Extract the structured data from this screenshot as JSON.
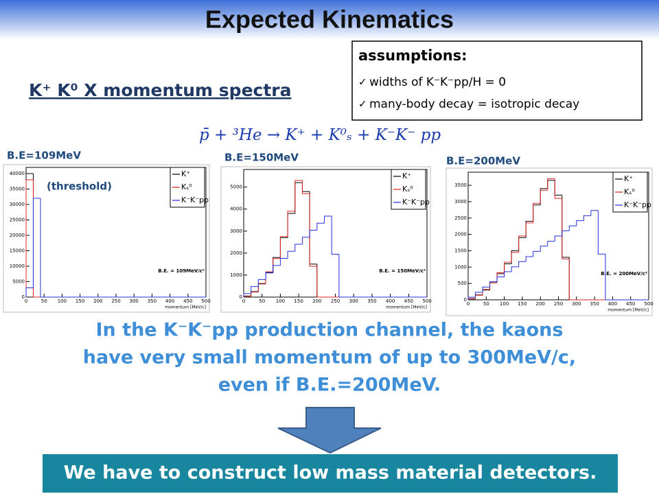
{
  "title": "Expected Kinematics",
  "subtitle": "K⁺ K⁰ X momentum spectra",
  "assumptions": {
    "heading": "assumptions:",
    "items": [
      "widths of K⁻K⁻pp/H = 0",
      "many-body decay = isotropic decay"
    ]
  },
  "reaction": "p̄ + ³He → K⁺ + K⁰ₛ + K⁻K⁻ pp",
  "conclusion": [
    "In the K⁻K⁻pp production channel, the kaons",
    "have very small momentum of up to 300MeV/c,",
    "even if B.E.=200MeV."
  ],
  "banner": "We have to construct low mass material detectors.",
  "chart_data": [
    {
      "type": "histogram",
      "title": "B.E=109MeV",
      "annotation": "(threshold)",
      "note": "B.E. = 109MeV/c²",
      "xlabel": "momentum [MeV/c]",
      "bins": [
        0,
        20,
        40,
        60,
        80,
        100,
        120,
        140,
        160,
        180,
        200,
        220,
        240,
        260,
        280,
        300,
        320,
        340,
        360,
        380,
        400,
        420,
        440,
        460,
        480,
        500
      ],
      "xlim": [
        0,
        500
      ],
      "xticks": [
        0,
        50,
        100,
        150,
        200,
        250,
        300,
        350,
        400,
        450,
        500
      ],
      "ylim": [
        0,
        42000
      ],
      "yticks": [
        0,
        5000,
        10000,
        15000,
        20000,
        25000,
        30000,
        35000,
        40000
      ],
      "series": [
        {
          "name": "K⁺",
          "color": "#000000",
          "values": [
            40000,
            0,
            0,
            0,
            0,
            0,
            0,
            0,
            0,
            0,
            0,
            0,
            0,
            0,
            0,
            0,
            0,
            0,
            0,
            0,
            0,
            0,
            0,
            0,
            0
          ]
        },
        {
          "name": "Kₛ⁰",
          "color": "#e02020",
          "values": [
            38000,
            0,
            0,
            0,
            0,
            0,
            0,
            0,
            0,
            0,
            0,
            0,
            0,
            0,
            0,
            0,
            0,
            0,
            0,
            0,
            0,
            0,
            0,
            0,
            0
          ]
        },
        {
          "name": "K⁻K⁻pp",
          "color": "#2030e0",
          "values": [
            3000,
            32000,
            0,
            0,
            0,
            0,
            0,
            0,
            0,
            0,
            0,
            0,
            0,
            0,
            0,
            0,
            0,
            0,
            0,
            0,
            0,
            0,
            0,
            0,
            0
          ]
        }
      ]
    },
    {
      "type": "histogram",
      "title": "B.E=150MeV",
      "note": "B.E. = 150MeV/c²",
      "xlabel": "momentum [MeV/c]",
      "bins": [
        0,
        20,
        40,
        60,
        80,
        100,
        120,
        140,
        160,
        180,
        200,
        220,
        240,
        260,
        280,
        300,
        320,
        340,
        360,
        380,
        400,
        420,
        440,
        460,
        480,
        500
      ],
      "xlim": [
        0,
        500
      ],
      "xticks": [
        0,
        50,
        100,
        150,
        200,
        250,
        300,
        350,
        400,
        450,
        500
      ],
      "ylim": [
        0,
        5800
      ],
      "yticks": [
        0,
        1000,
        2000,
        3000,
        4000,
        5000
      ],
      "series": [
        {
          "name": "K⁺",
          "color": "#000000",
          "values": [
            50,
            250,
            600,
            1100,
            1800,
            2700,
            3800,
            5200,
            4800,
            1500,
            0,
            0,
            0,
            0,
            0,
            0,
            0,
            0,
            0,
            0,
            0,
            0,
            0,
            0,
            0
          ]
        },
        {
          "name": "Kₛ⁰",
          "color": "#e02020",
          "values": [
            40,
            230,
            620,
            1150,
            1750,
            2750,
            3900,
            5300,
            4700,
            1400,
            0,
            0,
            0,
            0,
            0,
            0,
            0,
            0,
            0,
            0,
            0,
            0,
            0,
            0,
            0
          ]
        },
        {
          "name": "K⁻K⁻pp",
          "color": "#2030e0",
          "values": [
            160,
            480,
            800,
            1120,
            1440,
            1760,
            2080,
            2400,
            2720,
            3040,
            3360,
            3680,
            1950,
            0,
            0,
            0,
            0,
            0,
            0,
            0,
            0,
            0,
            0,
            0,
            0
          ]
        }
      ]
    },
    {
      "type": "histogram",
      "title": "B.E=200MeV",
      "note": "B.E. = 200MeV/c²",
      "xlabel": "momentum [MeV/c]",
      "bins": [
        0,
        20,
        40,
        60,
        80,
        100,
        120,
        140,
        160,
        180,
        200,
        220,
        240,
        260,
        280,
        300,
        320,
        340,
        360,
        380,
        400,
        420,
        440,
        460,
        480,
        500
      ],
      "xlim": [
        0,
        500
      ],
      "xticks": [
        0,
        50,
        100,
        150,
        200,
        250,
        300,
        350,
        400,
        450,
        500
      ],
      "ylim": [
        0,
        3900
      ],
      "yticks": [
        0,
        500,
        1000,
        1500,
        2000,
        2500,
        3000,
        3500
      ],
      "series": [
        {
          "name": "K⁺",
          "color": "#000000",
          "values": [
            30,
            150,
            300,
            550,
            800,
            1100,
            1500,
            1900,
            2400,
            2900,
            3400,
            3650,
            3200,
            1300,
            0,
            0,
            0,
            0,
            0,
            0,
            0,
            0,
            0,
            0,
            0
          ]
        },
        {
          "name": "Kₛ⁰",
          "color": "#e02020",
          "values": [
            40,
            140,
            320,
            520,
            830,
            1150,
            1450,
            1950,
            2350,
            2950,
            3350,
            3700,
            3100,
            1250,
            0,
            0,
            0,
            0,
            0,
            0,
            0,
            0,
            0,
            0,
            0
          ]
        },
        {
          "name": "K⁻K⁻pp",
          "color": "#2030e0",
          "values": [
            80,
            230,
            390,
            550,
            700,
            860,
            1010,
            1170,
            1320,
            1480,
            1640,
            1790,
            1950,
            2110,
            2260,
            2420,
            2570,
            2730,
            1400,
            0,
            0,
            0,
            0,
            0,
            0
          ]
        }
      ]
    }
  ]
}
